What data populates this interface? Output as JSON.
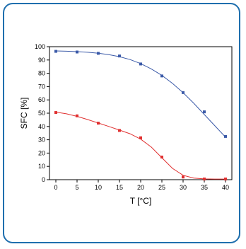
{
  "chart_data": {
    "type": "line",
    "title": "",
    "xlabel": "T [°C]",
    "ylabel": "SFC [%]",
    "xlim": [
      -1.5,
      41.5
    ],
    "ylim": [
      0,
      100
    ],
    "xticks": [
      0,
      5,
      10,
      15,
      20,
      25,
      30,
      35,
      40
    ],
    "yticks": [
      0,
      10,
      20,
      30,
      40,
      50,
      60,
      70,
      80,
      90,
      100
    ],
    "grid": false,
    "legend": "none",
    "series": [
      {
        "color": "#3b5aa8",
        "marker": "square",
        "points": [
          [
            0,
            96.5
          ],
          [
            5,
            96
          ],
          [
            10,
            95
          ],
          [
            15,
            93
          ],
          [
            20,
            87
          ],
          [
            25,
            78
          ],
          [
            30,
            65.5
          ],
          [
            35,
            51
          ],
          [
            40,
            32.5
          ]
        ],
        "fit": [
          [
            0,
            96.8
          ],
          [
            2.5,
            96.6
          ],
          [
            5,
            96.3
          ],
          [
            7.5,
            95.8
          ],
          [
            10,
            95.1
          ],
          [
            12.5,
            94
          ],
          [
            15,
            92.5
          ],
          [
            17.5,
            90.3
          ],
          [
            20,
            87.3
          ],
          [
            22.5,
            83.3
          ],
          [
            25,
            78.4
          ],
          [
            27.5,
            72.4
          ],
          [
            30,
            65.4
          ],
          [
            32.5,
            57.5
          ],
          [
            35,
            49
          ],
          [
            37.5,
            40.5
          ],
          [
            40,
            32
          ]
        ]
      },
      {
        "color": "#e03030",
        "marker": "square",
        "points": [
          [
            0,
            50.5
          ],
          [
            5,
            48
          ],
          [
            10,
            42.5
          ],
          [
            15,
            37
          ],
          [
            20,
            31.5
          ],
          [
            25,
            17
          ],
          [
            30,
            2
          ],
          [
            35,
            0.5
          ],
          [
            40,
            0.5
          ]
        ],
        "fit": [
          [
            0,
            50.8
          ],
          [
            2.5,
            49.5
          ],
          [
            5,
            47.6
          ],
          [
            7.5,
            45.2
          ],
          [
            10,
            42.6
          ],
          [
            12.5,
            40
          ],
          [
            15,
            37.3
          ],
          [
            17.5,
            34.5
          ],
          [
            20,
            30.5
          ],
          [
            22.5,
            24.5
          ],
          [
            25,
            16.5
          ],
          [
            27.5,
            8.5
          ],
          [
            30,
            3.3
          ],
          [
            32.5,
            1.2
          ],
          [
            35,
            0.6
          ],
          [
            37.5,
            0.5
          ],
          [
            40,
            0.5
          ]
        ]
      }
    ]
  }
}
